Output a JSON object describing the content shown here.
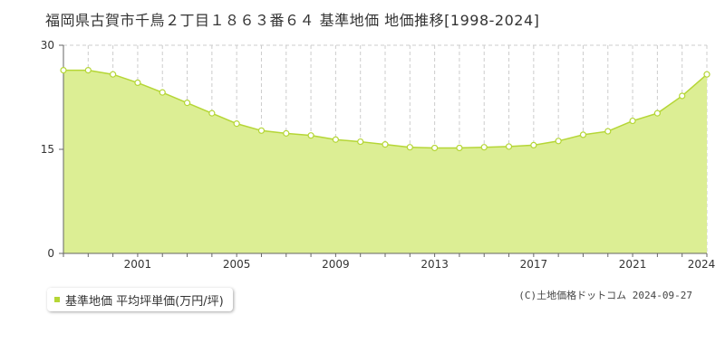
{
  "chart_data": {
    "type": "area",
    "title": "福岡県古賀市千鳥２丁目１８６３番６４ 基準地価 地価推移[1998-2024]",
    "xlabel": "",
    "ylabel": "",
    "x": [
      1998,
      1999,
      2000,
      2001,
      2002,
      2003,
      2004,
      2005,
      2006,
      2007,
      2008,
      2009,
      2010,
      2011,
      2012,
      2013,
      2014,
      2015,
      2016,
      2017,
      2018,
      2019,
      2020,
      2021,
      2022,
      2023,
      2024
    ],
    "series": [
      {
        "name": "基準地価 平均坪単価(万円/坪)",
        "values": [
          26.4,
          26.4,
          25.8,
          24.6,
          23.2,
          21.7,
          20.2,
          18.7,
          17.7,
          17.3,
          17.0,
          16.4,
          16.1,
          15.7,
          15.3,
          15.2,
          15.2,
          15.3,
          15.4,
          15.6,
          16.2,
          17.1,
          17.6,
          19.1,
          20.2,
          22.7,
          25.8
        ]
      }
    ],
    "xticks": [
      2001,
      2005,
      2009,
      2013,
      2017,
      2021,
      2024
    ],
    "yticks": [
      0,
      15,
      30
    ],
    "xlim": [
      1998,
      2024
    ],
    "ylim": [
      0,
      30
    ],
    "grid": true,
    "legend_position": "bottom-left",
    "colors": {
      "line": "#b5d636",
      "fill": "#dcee94",
      "marker_fill": "#ffffff",
      "grid": "#cccccc"
    }
  },
  "credit": "(C)土地価格ドットコム 2024-09-27"
}
